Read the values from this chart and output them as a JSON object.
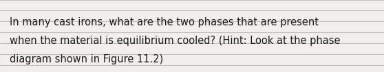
{
  "text_line1": "In many cast irons, what are the two phases that are present",
  "text_line2": "when the material is equilibrium cooled? (Hint: Look at the phase",
  "text_line3": "diagram shown in Figure 11.2)",
  "background_color": "#f0efeb",
  "text_color": "#1c1c1c",
  "font_size": 10.5,
  "line_color": "#c0bfba",
  "fig_width": 5.58,
  "fig_height": 1.05,
  "dpi": 100
}
